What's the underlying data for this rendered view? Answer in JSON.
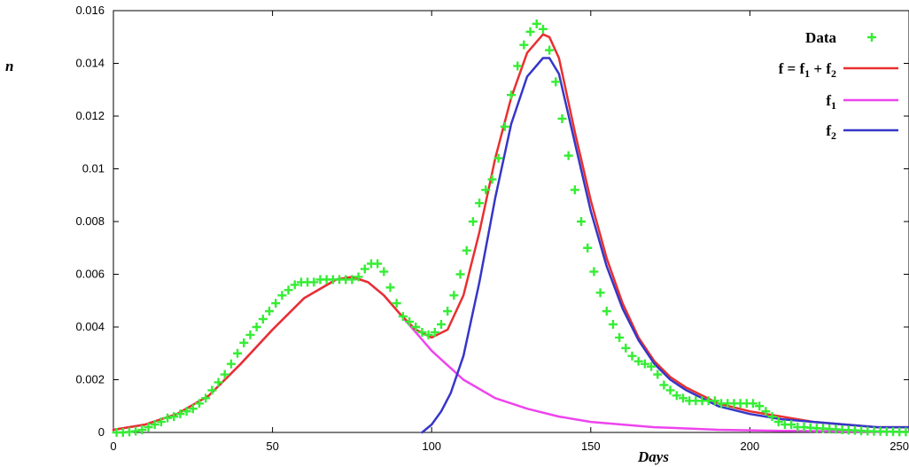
{
  "chart_data": {
    "type": "line",
    "title": "",
    "xlabel": "Days",
    "ylabel": "n",
    "xlim": [
      0,
      250
    ],
    "ylim": [
      0,
      0.016
    ],
    "x_ticks": [
      0,
      50,
      100,
      150,
      200,
      250
    ],
    "x_tick_labels": [
      "0",
      "50",
      "100",
      "150",
      "200",
      "250"
    ],
    "y_ticks": [
      0,
      0.002,
      0.004,
      0.006,
      0.008,
      0.01,
      0.012,
      0.014,
      0.016
    ],
    "y_tick_labels": [
      "0",
      "0.002",
      "0.004",
      "0.006",
      "0.008",
      "0.01",
      "0.012",
      "0.014",
      "0.016"
    ],
    "grid": false,
    "legend_position": "top-right",
    "legend": [
      {
        "key": "data",
        "label": "Data",
        "marker": "plus",
        "color": "#33ee33"
      },
      {
        "key": "f",
        "label_parts": [
          "f = f",
          "1",
          " + f",
          "2"
        ],
        "marker": "line",
        "color": "#e83030"
      },
      {
        "key": "f1",
        "label_parts": [
          "f",
          "1"
        ],
        "marker": "line",
        "color": "#ee44ee"
      },
      {
        "key": "f2",
        "label_parts": [
          "f",
          "2"
        ],
        "marker": "line",
        "color": "#3636c8"
      }
    ],
    "series": [
      {
        "key": "data",
        "name": "Data",
        "kind": "scatter",
        "color": "#33ee33",
        "x": [
          1,
          3,
          5,
          7,
          9,
          11,
          13,
          15,
          17,
          19,
          21,
          23,
          25,
          27,
          29,
          31,
          33,
          35,
          37,
          39,
          41,
          43,
          45,
          47,
          49,
          51,
          53,
          55,
          57,
          59,
          61,
          63,
          65,
          67,
          69,
          71,
          73,
          75,
          77,
          79,
          81,
          83,
          85,
          87,
          89,
          91,
          93,
          95,
          97,
          99,
          101,
          103,
          105,
          107,
          109,
          111,
          113,
          115,
          117,
          119,
          121,
          123,
          125,
          127,
          129,
          131,
          133,
          135,
          137,
          139,
          141,
          143,
          145,
          147,
          149,
          151,
          153,
          155,
          157,
          159,
          161,
          163,
          165,
          167,
          169,
          171,
          173,
          175,
          177,
          179,
          181,
          183,
          185,
          187,
          189,
          191,
          193,
          195,
          197,
          199,
          201,
          203,
          205,
          207,
          209,
          211,
          213,
          215,
          217,
          219,
          221,
          223,
          225,
          227,
          229,
          231,
          233,
          235,
          237,
          239,
          241,
          243,
          245,
          247,
          249
        ],
        "y": [
          0,
          0,
          2e-05,
          5e-05,
          0.0001,
          0.0002,
          0.0003,
          0.0004,
          0.00055,
          0.0006,
          0.0007,
          0.0008,
          0.0009,
          0.0011,
          0.0013,
          0.0016,
          0.0019,
          0.0022,
          0.0026,
          0.003,
          0.0034,
          0.0037,
          0.004,
          0.0043,
          0.0046,
          0.0049,
          0.0052,
          0.0054,
          0.0056,
          0.0057,
          0.0057,
          0.0057,
          0.0058,
          0.0058,
          0.0058,
          0.0058,
          0.0058,
          0.0058,
          0.0059,
          0.0062,
          0.0064,
          0.0064,
          0.0061,
          0.0055,
          0.0049,
          0.0044,
          0.0042,
          0.004,
          0.0038,
          0.0037,
          0.0038,
          0.0041,
          0.0046,
          0.0052,
          0.006,
          0.0069,
          0.008,
          0.0087,
          0.0092,
          0.0096,
          0.0104,
          0.0116,
          0.0128,
          0.0139,
          0.0147,
          0.0152,
          0.0155,
          0.0153,
          0.0145,
          0.0133,
          0.0119,
          0.0105,
          0.0092,
          0.008,
          0.007,
          0.0061,
          0.0053,
          0.0046,
          0.0041,
          0.0036,
          0.0032,
          0.0029,
          0.0027,
          0.0026,
          0.0025,
          0.0022,
          0.0018,
          0.0016,
          0.0014,
          0.0013,
          0.0012,
          0.0012,
          0.0012,
          0.0012,
          0.0012,
          0.0011,
          0.0011,
          0.0011,
          0.0011,
          0.0011,
          0.0011,
          0.001,
          0.0008,
          0.0006,
          0.0004,
          0.0003,
          0.0003,
          0.0002,
          0.0002,
          0.00018,
          0.00016,
          0.00015,
          0.00013,
          0.00012,
          0.0001,
          9e-05,
          8e-05,
          6e-05,
          5e-05,
          4e-05,
          4e-05,
          3e-05,
          3e-05,
          2e-05,
          2e-05
        ]
      },
      {
        "key": "f",
        "name": "f = f1 + f2",
        "kind": "line",
        "color": "#e83030",
        "x": [
          0,
          10,
          20,
          30,
          40,
          50,
          60,
          70,
          75,
          80,
          85,
          90,
          95,
          100,
          105,
          110,
          115,
          120,
          125,
          130,
          135,
          137,
          140,
          145,
          150,
          155,
          160,
          165,
          170,
          175,
          180,
          190,
          200,
          210,
          220,
          230,
          240,
          250
        ],
        "y": [
          0.0001,
          0.0003,
          0.0007,
          0.0014,
          0.0026,
          0.0039,
          0.0051,
          0.0058,
          0.0059,
          0.0057,
          0.0052,
          0.0045,
          0.0039,
          0.0036,
          0.0039,
          0.0052,
          0.0076,
          0.0104,
          0.0127,
          0.0144,
          0.0151,
          0.015,
          0.0142,
          0.0114,
          0.0088,
          0.0066,
          0.0049,
          0.0036,
          0.0027,
          0.0021,
          0.0017,
          0.0011,
          0.0008,
          0.0006,
          0.0004,
          0.0003,
          0.0002,
          0.0002
        ]
      },
      {
        "key": "f1",
        "name": "f1",
        "kind": "line",
        "color": "#ee44ee",
        "x": [
          0,
          10,
          20,
          30,
          40,
          50,
          60,
          70,
          75,
          80,
          85,
          90,
          95,
          100,
          110,
          120,
          130,
          140,
          150,
          160,
          170,
          180,
          190,
          200,
          210,
          220,
          230,
          240,
          250
        ],
        "y": [
          0.0001,
          0.0003,
          0.0007,
          0.0014,
          0.0026,
          0.0039,
          0.0051,
          0.0058,
          0.0059,
          0.0057,
          0.0052,
          0.0045,
          0.0038,
          0.0031,
          0.002,
          0.0013,
          0.0009,
          0.0006,
          0.0004,
          0.0003,
          0.0002,
          0.00015,
          0.0001,
          8e-05,
          6e-05,
          5e-05,
          4e-05,
          3e-05,
          2e-05
        ]
      },
      {
        "key": "f2",
        "name": "f2",
        "kind": "line",
        "color": "#3636c8",
        "x": [
          97,
          100,
          103,
          106,
          110,
          115,
          120,
          125,
          130,
          135,
          137,
          140,
          145,
          150,
          155,
          160,
          165,
          170,
          175,
          180,
          190,
          200,
          210,
          220,
          230,
          240,
          250
        ],
        "y": [
          0,
          0.0003,
          0.0008,
          0.0015,
          0.0029,
          0.0057,
          0.0089,
          0.0117,
          0.0135,
          0.0142,
          0.0142,
          0.0136,
          0.011,
          0.0084,
          0.0063,
          0.0047,
          0.0035,
          0.0026,
          0.002,
          0.0016,
          0.001,
          0.0007,
          0.0005,
          0.0004,
          0.0003,
          0.0002,
          0.0002
        ]
      }
    ]
  }
}
